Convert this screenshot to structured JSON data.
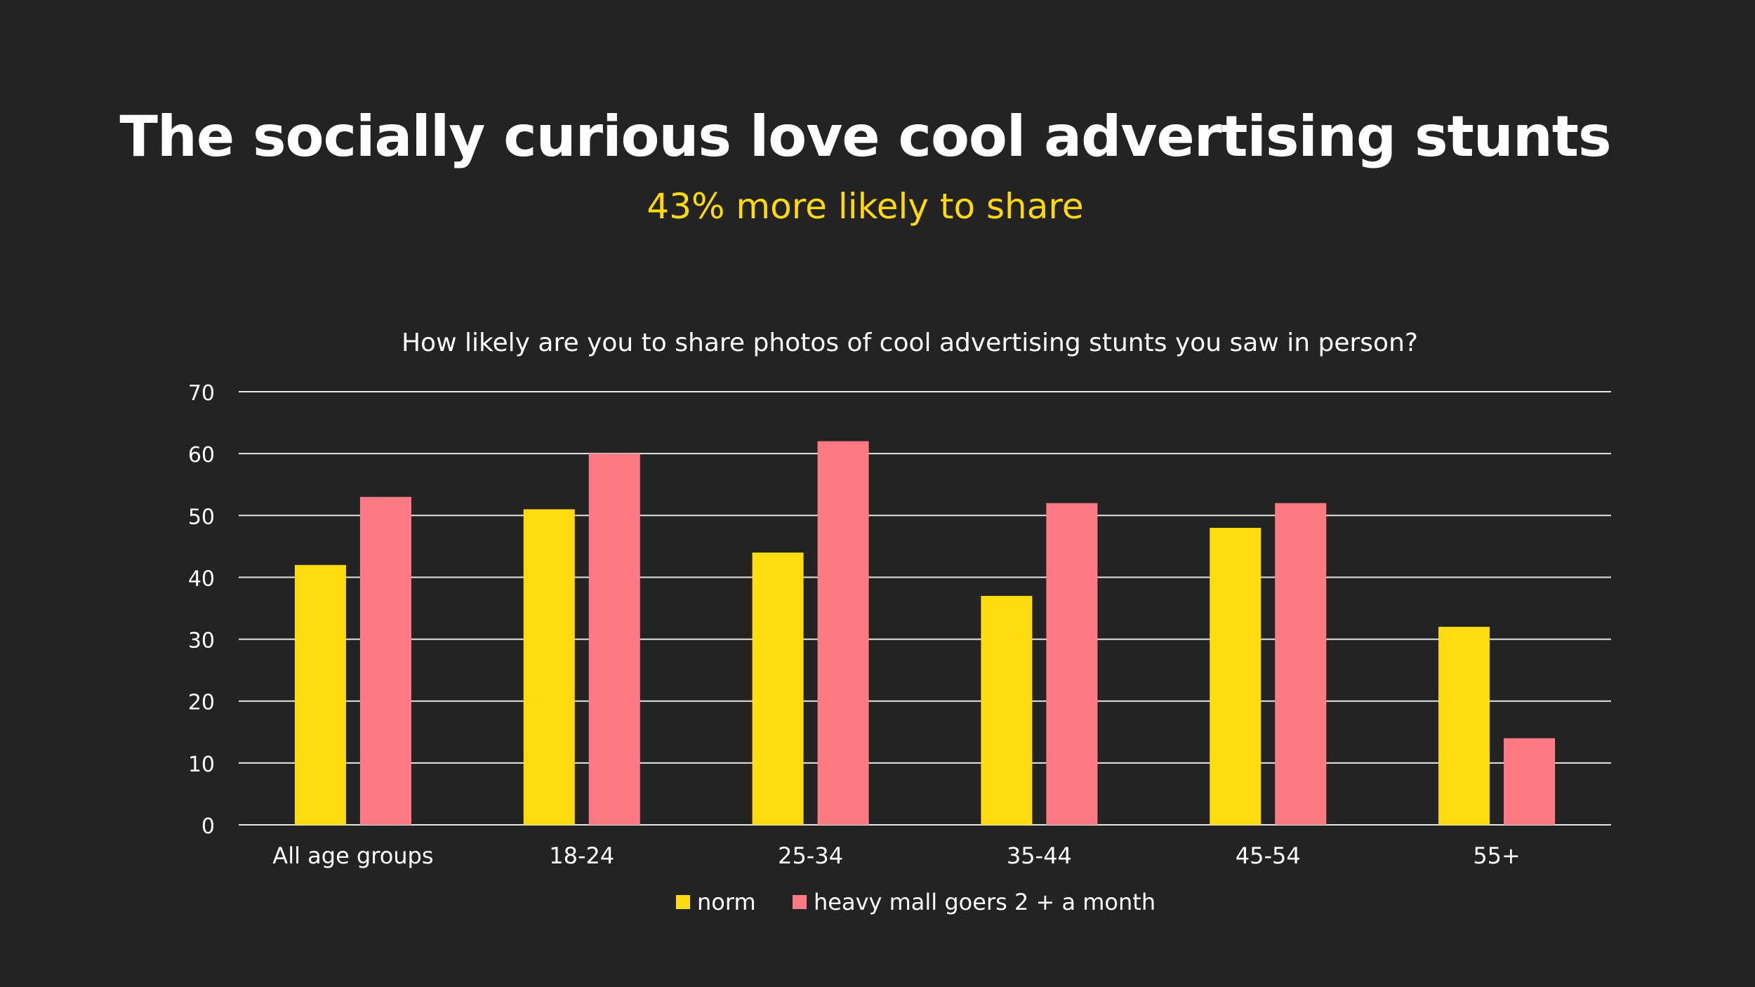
{
  "header": {
    "title": "The socially curious love cool advertising stunts",
    "subtitle": "43% more likely to share"
  },
  "colors": {
    "background": "#232323",
    "subtitle": "#ffd90f",
    "norm": "#ffdc0f",
    "heavy": "#ff7a85",
    "text": "#ffffff",
    "grid": "#e6e6e6"
  },
  "chart_data": {
    "type": "bar",
    "title": "How likely are you to share photos of cool advertising stunts you saw in person?",
    "xlabel": "",
    "ylabel": "",
    "categories": [
      "All age groups",
      "18-24",
      "25-34",
      "35-44",
      "45-54",
      "55+"
    ],
    "series": [
      {
        "name": "norm",
        "color": "#ffdc0f",
        "values": [
          42,
          51,
          44,
          37,
          48,
          32
        ]
      },
      {
        "name": "heavy mall goers 2 + a month",
        "color": "#ff7a85",
        "values": [
          53,
          60,
          62,
          52,
          52,
          14
        ]
      }
    ],
    "ylim": [
      0,
      70
    ],
    "yticks": [
      0,
      10,
      20,
      30,
      40,
      50,
      60,
      70
    ],
    "grid": true,
    "legend": "bottom"
  }
}
